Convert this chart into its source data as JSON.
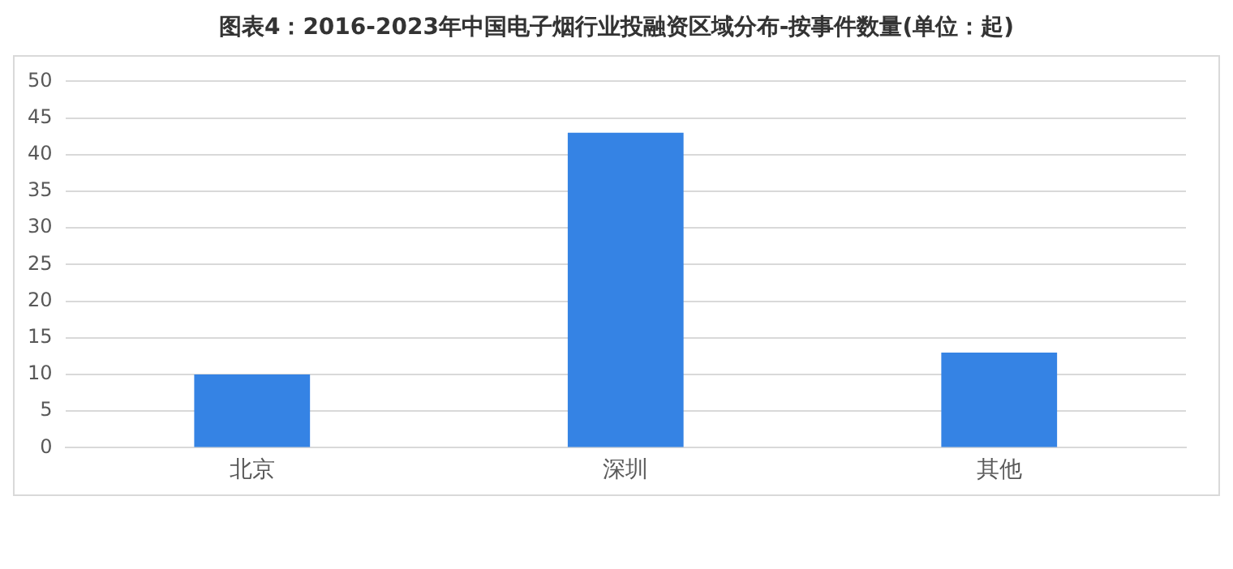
{
  "chart_data": {
    "type": "bar",
    "title": "图表4：2016-2023年中国电子烟行业投融资区域分布-按事件数量(单位：起)",
    "categories": [
      "北京",
      "深圳",
      "其他"
    ],
    "values": [
      10,
      43,
      13
    ],
    "color": "#3583e4",
    "ylim": [
      0,
      50
    ],
    "yticks": [
      0,
      5,
      10,
      15,
      20,
      25,
      30,
      35,
      40,
      45,
      50
    ],
    "grid": "y"
  }
}
